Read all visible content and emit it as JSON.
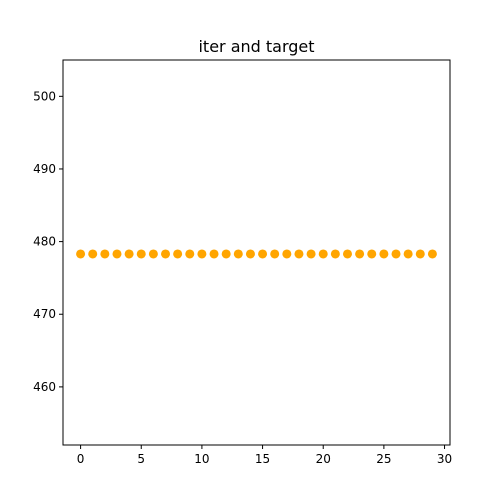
{
  "chart_data": {
    "type": "scatter",
    "title": "iter and target",
    "xlabel": "",
    "ylabel": "",
    "xlim": [
      -1.45,
      30.45
    ],
    "ylim": [
      452.0,
      505.0
    ],
    "xticks": [
      0,
      5,
      10,
      15,
      20,
      25,
      30
    ],
    "yticks": [
      460,
      470,
      480,
      490,
      500
    ],
    "grid": false,
    "legend": "none",
    "series": [
      {
        "color": "#FFA500",
        "x": [
          0,
          1,
          2,
          3,
          4,
          5,
          6,
          7,
          8,
          9,
          10,
          11,
          12,
          13,
          14,
          15,
          16,
          17,
          18,
          19,
          20,
          21,
          22,
          23,
          24,
          25,
          26,
          27,
          28,
          29
        ],
        "y": [
          478.3,
          478.3,
          478.3,
          478.3,
          478.3,
          478.3,
          478.3,
          478.3,
          478.3,
          478.3,
          478.3,
          478.3,
          478.3,
          478.3,
          478.3,
          478.3,
          478.3,
          478.3,
          478.3,
          478.3,
          478.3,
          478.3,
          478.3,
          478.3,
          478.3,
          478.3,
          478.3,
          478.3,
          478.3,
          478.3
        ]
      }
    ]
  }
}
